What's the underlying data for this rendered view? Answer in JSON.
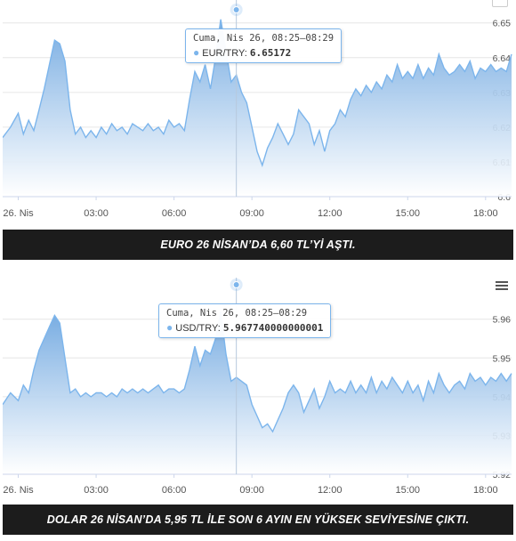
{
  "colors": {
    "line": "#7cb5ec",
    "fill_top": "#6fa7e0",
    "fill_bottom": "#ffffff",
    "grid": "#e6e6e6",
    "axis_text": "#555555",
    "caption_bg": "#1c1c1c"
  },
  "x_ticks": [
    "26. Nis",
    "03:00",
    "06:00",
    "09:00",
    "12:00",
    "15:00",
    "18:00"
  ],
  "chart_data": [
    {
      "type": "area",
      "title": "",
      "xlabel": "",
      "ylabel": "",
      "x_ticks": [
        "26. Nis",
        "03:00",
        "06:00",
        "09:00",
        "12:00",
        "15:00",
        "18:00"
      ],
      "y_ticks": [
        "6.6",
        "6.61",
        "6.62",
        "6.63",
        "6.64",
        "6.65"
      ],
      "ylim": [
        6.6,
        6.653
      ],
      "x_hours_range": [
        -0.6,
        19.0
      ],
      "grid": true,
      "series": [
        {
          "x_hours": [
            -0.6,
            -0.3,
            0,
            0.2,
            0.4,
            0.6,
            0.8,
            1.0,
            1.2,
            1.4,
            1.6,
            1.8,
            2.0,
            2.2,
            2.4,
            2.6,
            2.8,
            3.0,
            3.2,
            3.4,
            3.6,
            3.8,
            4.0,
            4.2,
            4.4,
            4.6,
            4.8,
            5.0,
            5.2,
            5.4,
            5.6,
            5.8,
            6.0,
            6.2,
            6.4,
            6.6,
            6.8,
            7.0,
            7.2,
            7.4,
            7.6,
            7.8,
            8.0,
            8.2,
            8.4,
            8.6,
            8.8,
            9.0,
            9.2,
            9.4,
            9.6,
            9.8,
            10.0,
            10.2,
            10.4,
            10.6,
            10.8,
            11.0,
            11.2,
            11.4,
            11.6,
            11.8,
            12.0,
            12.2,
            12.4,
            12.6,
            12.8,
            13.0,
            13.2,
            13.4,
            13.6,
            13.8,
            14.0,
            14.2,
            14.4,
            14.6,
            14.8,
            15.0,
            15.2,
            15.4,
            15.6,
            15.8,
            16.0,
            16.2,
            16.4,
            16.6,
            16.8,
            17.0,
            17.2,
            17.4,
            17.6,
            17.8,
            18.0,
            18.2,
            18.4,
            18.6,
            18.8,
            19.0
          ],
          "values": [
            6.617,
            6.62,
            6.624,
            6.618,
            6.622,
            6.619,
            6.625,
            6.631,
            6.638,
            6.645,
            6.644,
            6.639,
            6.625,
            6.618,
            6.62,
            6.617,
            6.619,
            6.617,
            6.62,
            6.618,
            6.621,
            6.619,
            6.62,
            6.618,
            6.621,
            6.62,
            6.619,
            6.621,
            6.619,
            6.62,
            6.618,
            6.622,
            6.62,
            6.621,
            6.619,
            6.628,
            6.636,
            6.633,
            6.638,
            6.631,
            6.64,
            6.651,
            6.642,
            6.633,
            6.635,
            6.63,
            6.627,
            6.62,
            6.613,
            6.609,
            6.614,
            6.617,
            6.621,
            6.618,
            6.615,
            6.618,
            6.625,
            6.623,
            6.621,
            6.615,
            6.619,
            6.613,
            6.619,
            6.621,
            6.625,
            6.623,
            6.628,
            6.631,
            6.629,
            6.632,
            6.63,
            6.633,
            6.631,
            6.635,
            6.633,
            6.638,
            6.634,
            6.636,
            6.634,
            6.638,
            6.634,
            6.637,
            6.635,
            6.641,
            6.637,
            6.635,
            6.636,
            6.638,
            6.636,
            6.639,
            6.634,
            6.637,
            6.636,
            6.638,
            6.636,
            6.637,
            6.636,
            6.641
          ]
        }
      ]
    },
    {
      "type": "area",
      "title": "",
      "xlabel": "",
      "ylabel": "",
      "x_ticks": [
        "26. Nis",
        "03:00",
        "06:00",
        "09:00",
        "12:00",
        "15:00",
        "18:00"
      ],
      "y_ticks": [
        "5.92",
        "5.93",
        "5.94",
        "5.95",
        "5.96"
      ],
      "ylim": [
        5.92,
        5.962
      ],
      "x_hours_range": [
        -0.6,
        19.0
      ],
      "grid": true,
      "series": [
        {
          "x_hours": [
            -0.6,
            -0.3,
            0,
            0.2,
            0.4,
            0.6,
            0.8,
            1.0,
            1.2,
            1.4,
            1.6,
            1.8,
            2.0,
            2.2,
            2.4,
            2.6,
            2.8,
            3.0,
            3.2,
            3.4,
            3.6,
            3.8,
            4.0,
            4.2,
            4.4,
            4.6,
            4.8,
            5.0,
            5.2,
            5.4,
            5.6,
            5.8,
            6.0,
            6.2,
            6.4,
            6.6,
            6.8,
            7.0,
            7.2,
            7.4,
            7.6,
            7.8,
            8.0,
            8.2,
            8.4,
            8.6,
            8.8,
            9.0,
            9.2,
            9.4,
            9.6,
            9.8,
            10.0,
            10.2,
            10.4,
            10.6,
            10.8,
            11.0,
            11.2,
            11.4,
            11.6,
            11.8,
            12.0,
            12.2,
            12.4,
            12.6,
            12.8,
            13.0,
            13.2,
            13.4,
            13.6,
            13.8,
            14.0,
            14.2,
            14.4,
            14.6,
            14.8,
            15.0,
            15.2,
            15.4,
            15.6,
            15.8,
            16.0,
            16.2,
            16.4,
            16.6,
            16.8,
            17.0,
            17.2,
            17.4,
            17.6,
            17.8,
            18.0,
            18.2,
            18.4,
            18.6,
            18.8,
            19.0
          ],
          "values": [
            5.938,
            5.941,
            5.939,
            5.943,
            5.941,
            5.947,
            5.952,
            5.955,
            5.958,
            5.961,
            5.959,
            5.95,
            5.941,
            5.942,
            5.94,
            5.941,
            5.94,
            5.941,
            5.941,
            5.94,
            5.941,
            5.94,
            5.942,
            5.941,
            5.942,
            5.941,
            5.942,
            5.941,
            5.942,
            5.943,
            5.941,
            5.942,
            5.942,
            5.941,
            5.942,
            5.947,
            5.953,
            5.948,
            5.952,
            5.951,
            5.955,
            5.962,
            5.951,
            5.944,
            5.945,
            5.944,
            5.943,
            5.938,
            5.935,
            5.932,
            5.933,
            5.931,
            5.934,
            5.937,
            5.941,
            5.943,
            5.941,
            5.936,
            5.939,
            5.942,
            5.937,
            5.94,
            5.944,
            5.941,
            5.942,
            5.941,
            5.944,
            5.941,
            5.943,
            5.941,
            5.945,
            5.941,
            5.944,
            5.942,
            5.945,
            5.943,
            5.941,
            5.944,
            5.941,
            5.943,
            5.939,
            5.944,
            5.941,
            5.946,
            5.943,
            5.941,
            5.943,
            5.944,
            5.942,
            5.946,
            5.944,
            5.945,
            5.943,
            5.945,
            5.944,
            5.946,
            5.944,
            5.946
          ]
        }
      ]
    }
  ],
  "tooltip1": {
    "date": "Cuma, Nis 26, 08:25–08:29",
    "series": "EUR/TRY:",
    "value": "6.65172"
  },
  "tooltip2": {
    "date": "Cuma, Nis 26, 08:25–08:29",
    "series": "USD/TRY:",
    "value": "5.967740000000001"
  },
  "caption1": "EURO 26 NİSAN’DA 6,60 TL’Yİ AŞTI.",
  "caption2": "DOLAR 26 NİSAN’DA 5,95 TL İLE SON 6 AYIN EN YÜKSEK SEVİYESİNE ÇIKTI.",
  "icons": {
    "menu": "hamburger-menu-icon",
    "tooltip_marker": "dot-icon"
  }
}
